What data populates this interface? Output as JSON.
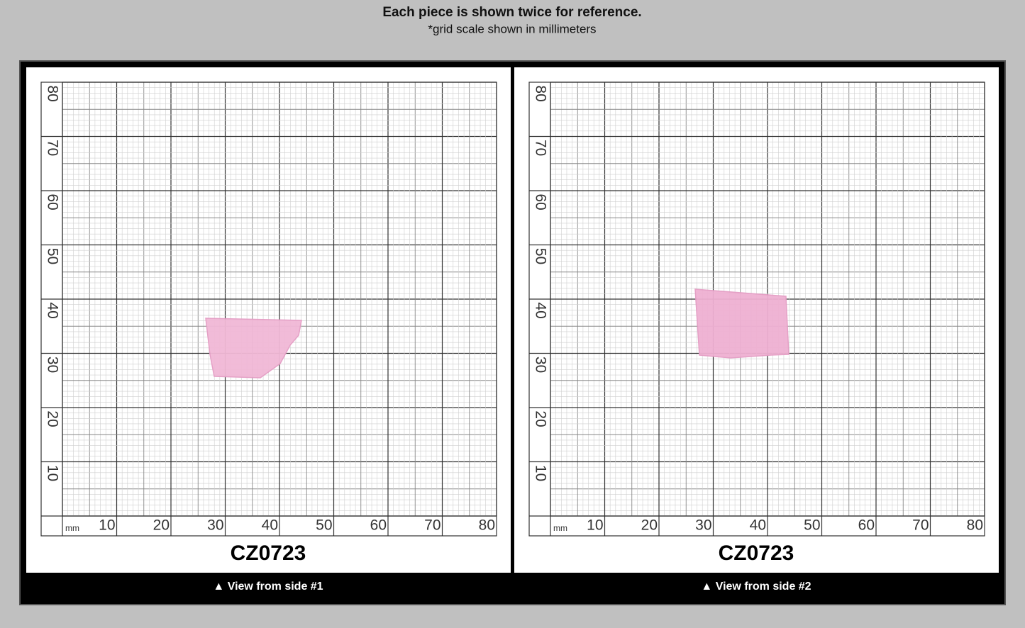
{
  "header": {
    "title": "Each piece is shown twice for reference.",
    "subtitle": "*grid scale shown in millimeters"
  },
  "panels": [
    {
      "y_labels": [
        80,
        70,
        60,
        50,
        40,
        30,
        20,
        10
      ],
      "unit": "mm",
      "x_labels": [
        10,
        20,
        30,
        40,
        50,
        60,
        70,
        80
      ],
      "code": "CZ0723",
      "caption": "▲ View from side #1"
    },
    {
      "y_labels": [
        80,
        70,
        60,
        50,
        40,
        30,
        20,
        10
      ],
      "unit": "mm",
      "x_labels": [
        10,
        20,
        30,
        40,
        50,
        60,
        70,
        80
      ],
      "code": "CZ0723",
      "caption": "▲ View from side #2"
    }
  ]
}
